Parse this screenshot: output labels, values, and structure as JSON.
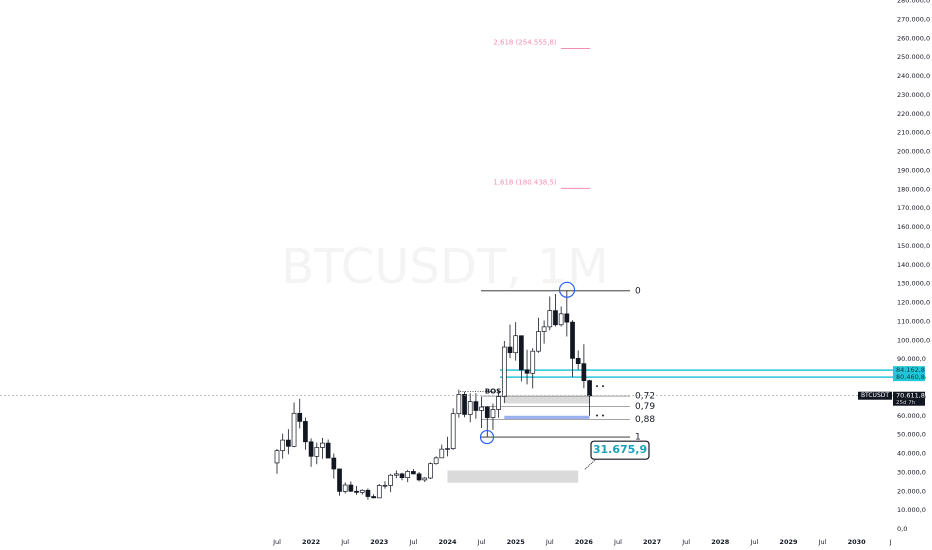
{
  "chart_data": {
    "type": "candlestick",
    "watermark": "BTCUSDT, 1M",
    "symbol": "BTCUSDT",
    "x": [
      "2021-07",
      "2021-08",
      "2021-09",
      "2021-10",
      "2021-11",
      "2021-12",
      "2022-01",
      "2022-02",
      "2022-03",
      "2022-04",
      "2022-05",
      "2022-06",
      "2022-07",
      "2022-08",
      "2022-09",
      "2022-10",
      "2022-11",
      "2022-12",
      "2023-01",
      "2023-02",
      "2023-03",
      "2023-04",
      "2023-05",
      "2023-06",
      "2023-07",
      "2023-08",
      "2023-09",
      "2023-10",
      "2023-11",
      "2023-12",
      "2024-01",
      "2024-02",
      "2024-03",
      "2024-04",
      "2024-05",
      "2024-06",
      "2024-07",
      "2024-08",
      "2024-09",
      "2024-10",
      "2024-11",
      "2024-12",
      "2025-01",
      "2025-02",
      "2025-03",
      "2025-04",
      "2025-05",
      "2025-06",
      "2025-07",
      "2025-08",
      "2025-09",
      "2025-10",
      "2025-11",
      "2025-12",
      "2026-01",
      "2026-02"
    ],
    "open": [
      35000,
      41500,
      47100,
      43800,
      61300,
      57000,
      46200,
      38500,
      43200,
      45500,
      37600,
      31800,
      19900,
      23300,
      20000,
      19400,
      20500,
      17200,
      16500,
      23100,
      23100,
      28500,
      29200,
      27200,
      30500,
      29200,
      26000,
      27000,
      34600,
      37700,
      42300,
      42600,
      61100,
      71300,
      60700,
      67500,
      62800,
      64600,
      59000,
      63300,
      70200,
      96400,
      93400,
      102400,
      84300,
      82500,
      94200,
      104600,
      107100,
      115700,
      108200,
      114000,
      109600,
      90400,
      87600,
      78600
    ],
    "high": [
      42400,
      50500,
      52900,
      67000,
      69000,
      59100,
      48000,
      45800,
      48200,
      47400,
      40000,
      31900,
      24700,
      25200,
      22800,
      21100,
      21500,
      18400,
      23900,
      25300,
      29200,
      31000,
      29800,
      31400,
      31800,
      30200,
      27500,
      35300,
      38500,
      44700,
      48900,
      64000,
      73800,
      72800,
      71900,
      72000,
      70000,
      65100,
      66500,
      73600,
      99600,
      108300,
      109600,
      102500,
      95000,
      95800,
      111900,
      110500,
      123200,
      124500,
      117900,
      126200,
      110600,
      94600,
      97900,
      79000
    ],
    "low": [
      29300,
      37300,
      39600,
      43300,
      53300,
      42000,
      32900,
      34300,
      37200,
      37700,
      26700,
      17600,
      18800,
      19600,
      18100,
      18200,
      15500,
      16300,
      16500,
      21400,
      19500,
      26900,
      25800,
      24800,
      28900,
      25200,
      24900,
      26500,
      34100,
      37600,
      38500,
      41900,
      59000,
      59200,
      56600,
      58400,
      53500,
      49000,
      52500,
      58900,
      66800,
      90500,
      89200,
      78200,
      76600,
      74500,
      93300,
      98200,
      105300,
      107300,
      107300,
      102000,
      80600,
      84400,
      74600,
      60000
    ],
    "close": [
      41500,
      47100,
      43800,
      61300,
      57000,
      46200,
      38500,
      43200,
      45500,
      37600,
      31800,
      19900,
      23300,
      20000,
      19400,
      20500,
      17200,
      16500,
      23100,
      23100,
      28500,
      29200,
      27200,
      30500,
      29200,
      26000,
      27000,
      34600,
      37700,
      42300,
      42600,
      61100,
      71300,
      60700,
      67500,
      62800,
      64600,
      59000,
      63300,
      70200,
      96400,
      93400,
      102400,
      84300,
      82500,
      94200,
      104600,
      107100,
      115700,
      108200,
      114000,
      109600,
      90400,
      87600,
      78600,
      70611.8
    ],
    "last_price": {
      "value": 70611.8,
      "label": "70.611,8"
    },
    "countdown": "25d 7h",
    "ylim": [
      0,
      280000
    ],
    "yticks": [
      {
        "value": 0,
        "label": "0,0"
      },
      {
        "value": 10000,
        "label": "10.000,0"
      },
      {
        "value": 20000,
        "label": "20.000,0"
      },
      {
        "value": 30000,
        "label": "30.000,0"
      },
      {
        "value": 40000,
        "label": "40.000,0"
      },
      {
        "value": 50000,
        "label": "50.000,0"
      },
      {
        "value": 60000,
        "label": "60.000,0"
      },
      {
        "value": 70000,
        "label": "70.000,0"
      },
      {
        "value": 80000,
        "label": "80.000,0"
      },
      {
        "value": 90000,
        "label": "90.000,0"
      },
      {
        "value": 100000,
        "label": "100.000,0"
      },
      {
        "value": 110000,
        "label": "110.000,0"
      },
      {
        "value": 120000,
        "label": "120.000,0"
      },
      {
        "value": 130000,
        "label": "130.000,0"
      },
      {
        "value": 140000,
        "label": "140.000,0"
      },
      {
        "value": 150000,
        "label": "150.000,0"
      },
      {
        "value": 160000,
        "label": "160.000,0"
      },
      {
        "value": 170000,
        "label": "170.000,0"
      },
      {
        "value": 180000,
        "label": "180.000,0"
      },
      {
        "value": 190000,
        "label": "190.000,0"
      },
      {
        "value": 200000,
        "label": "200.000,0"
      },
      {
        "value": 210000,
        "label": "210.000,0"
      },
      {
        "value": 220000,
        "label": "220.000,0"
      },
      {
        "value": 230000,
        "label": "230.000,0"
      },
      {
        "value": 240000,
        "label": "240.000,0"
      },
      {
        "value": 250000,
        "label": "250.000,0"
      },
      {
        "value": 260000,
        "label": "260.000,0"
      },
      {
        "value": 270000,
        "label": "270.000,0"
      },
      {
        "value": 280000,
        "label": "280.000,0"
      }
    ],
    "xticks": [
      {
        "value": "2021-07",
        "label": "Jul"
      },
      {
        "value": "2022-01",
        "label": "2022"
      },
      {
        "value": "2022-07",
        "label": "Jul"
      },
      {
        "value": "2023-01",
        "label": "2023"
      },
      {
        "value": "2023-07",
        "label": "Jul"
      },
      {
        "value": "2024-01",
        "label": "2024"
      },
      {
        "value": "2024-07",
        "label": "Jul"
      },
      {
        "value": "2025-01",
        "label": "2025"
      },
      {
        "value": "2025-07",
        "label": "Jul"
      },
      {
        "value": "2026-01",
        "label": "2026"
      },
      {
        "value": "2026-07",
        "label": "Jul"
      },
      {
        "value": "2027-01",
        "label": "2027"
      },
      {
        "value": "2027-07",
        "label": "Jul"
      },
      {
        "value": "2028-01",
        "label": "2028"
      },
      {
        "value": "2028-07",
        "label": "Jul"
      },
      {
        "value": "2029-01",
        "label": "2029"
      },
      {
        "value": "2029-07",
        "label": "Jul"
      },
      {
        "value": "2030-01",
        "label": "2030"
      },
      {
        "value": "2030-07",
        "label": "J"
      }
    ],
    "levels": [
      {
        "value": 84162.8,
        "label": "84.162,8",
        "color": "#26c6da"
      },
      {
        "value": 80460.8,
        "label": "80.460,8",
        "color": "#26c6da"
      }
    ],
    "fib_levels": [
      {
        "value": 126200,
        "label": "0"
      },
      {
        "value": 70400,
        "label": "0,72"
      },
      {
        "value": 64975,
        "label": "0,79"
      },
      {
        "value": 58000,
        "label": "0,88"
      },
      {
        "value": 48700,
        "label": "1"
      }
    ],
    "fib_extensions": [
      {
        "value": 180438.5,
        "label": "1,618 (180.438,5)"
      },
      {
        "value": 254555.8,
        "label": "2,618 (254.555,8)"
      }
    ],
    "callout": {
      "value": 31675.9,
      "label": "31.675,9"
    },
    "annotation": "BOS",
    "zones": [
      {
        "start": "2024-01",
        "end": "2025-12",
        "top": 31000,
        "bottom": 24500,
        "color": "#d6d6d6"
      },
      {
        "start": "2024-11",
        "end": "2026-02",
        "top": 70400,
        "bottom": 66500,
        "color": "#d6d6d6"
      },
      {
        "start": "2024-11",
        "end": "2026-02",
        "top": 60000,
        "bottom": 58300,
        "color": "#8fa8f0"
      }
    ]
  }
}
